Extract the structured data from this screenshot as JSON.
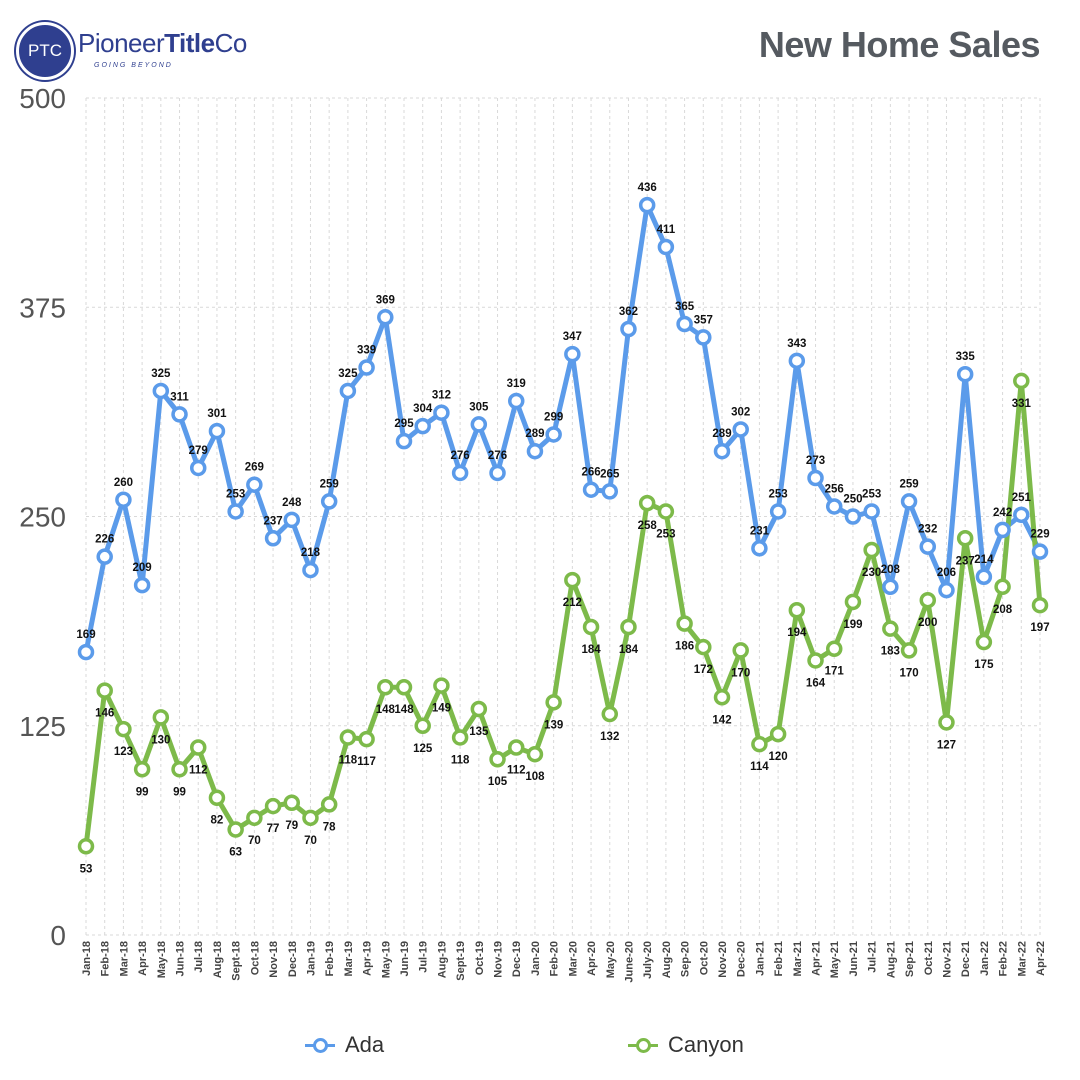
{
  "header": {
    "logo_mark": "PTC",
    "logo_name_a": "Pioneer",
    "logo_name_b": "Title",
    "logo_name_c": "Co",
    "logo_tagline": "GOING BEYOND",
    "title": "New Home Sales"
  },
  "colors": {
    "ada": "#5b9bea",
    "canyon": "#7dba4a",
    "grid": "#d9d9d9",
    "axis_text": "#555555"
  },
  "chart_data": {
    "type": "line",
    "title": "New Home Sales",
    "xlabel": "",
    "ylabel": "",
    "ylim": [
      0,
      500
    ],
    "yticks": [
      0,
      125,
      250,
      375,
      500
    ],
    "grid": true,
    "legend_position": "bottom",
    "categories": [
      "Jan-18",
      "Feb-18",
      "Mar-18",
      "Apr-18",
      "May-18",
      "Jun-18",
      "Jul-18",
      "Aug-18",
      "Sept-18",
      "Oct-18",
      "Nov-18",
      "Dec-18",
      "Jan-19",
      "Feb-19",
      "Mar-19",
      "Apr-19",
      "May-19",
      "Jun-19",
      "Jul-19",
      "Aug-19",
      "Sept-19",
      "Oct-19",
      "Nov-19",
      "Dec-19",
      "Jan-20",
      "Feb-20",
      "Mar-20",
      "Apr-20",
      "May-20",
      "June-20",
      "July-20",
      "Aug-20",
      "Sep-20",
      "Oct-20",
      "Nov-20",
      "Dec-20",
      "Jan-21",
      "Feb-21",
      "Mar-21",
      "Apr-21",
      "May-21",
      "Jun-21",
      "Jul-21",
      "Aug-21",
      "Sep-21",
      "Oct-21",
      "Nov-21",
      "Dec-21",
      "Jan-22",
      "Feb-22",
      "Mar-22",
      "Apr-22"
    ],
    "series": [
      {
        "name": "Ada",
        "color": "#5b9bea",
        "values": [
          169,
          226,
          260,
          209,
          325,
          311,
          279,
          301,
          253,
          269,
          237,
          248,
          218,
          259,
          325,
          339,
          369,
          295,
          304,
          312,
          276,
          305,
          276,
          319,
          289,
          299,
          347,
          266,
          265,
          362,
          436,
          411,
          365,
          357,
          289,
          302,
          231,
          253,
          343,
          273,
          256,
          250,
          253,
          208,
          259,
          232,
          206,
          335,
          214,
          242,
          251,
          229
        ]
      },
      {
        "name": "Canyon",
        "color": "#7dba4a",
        "values": [
          53,
          146,
          123,
          99,
          130,
          99,
          112,
          82,
          63,
          70,
          77,
          79,
          70,
          78,
          118,
          117,
          148,
          148,
          125,
          149,
          118,
          135,
          105,
          112,
          108,
          139,
          212,
          184,
          132,
          184,
          258,
          253,
          186,
          172,
          142,
          170,
          114,
          120,
          194,
          164,
          171,
          199,
          230,
          183,
          170,
          200,
          127,
          237,
          175,
          208,
          331,
          197
        ]
      }
    ]
  }
}
